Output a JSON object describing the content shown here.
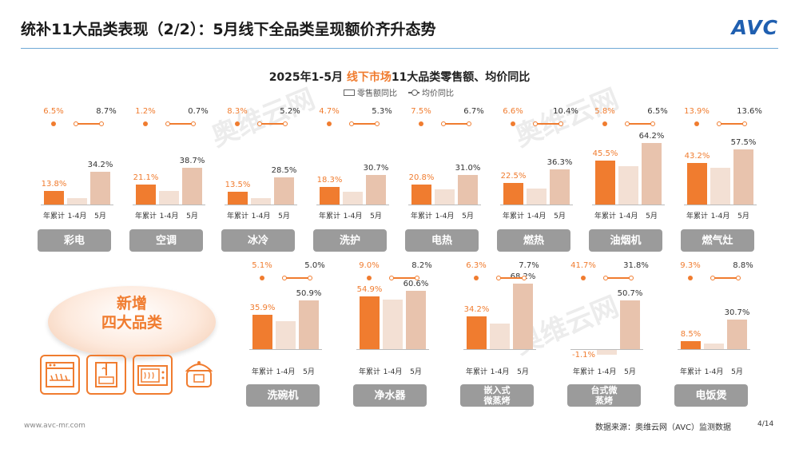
{
  "header": {
    "title": "统补11大品类表现（2/2）：5月线下全品类呈现额价齐升态势",
    "logo": "AVC"
  },
  "chart_header": {
    "subtitle_prefix": "2025年1-5月",
    "subtitle_highlight": "线下市场",
    "subtitle_suffix": "11大品类零售额、均价同比",
    "legend_bar": "零售额同比",
    "legend_line": "均价同比"
  },
  "colors": {
    "accent": "#f07c2f",
    "bar_light": "#e8c3ad",
    "bar_lighter": "#f3e0d4",
    "button": "#9b9b9b"
  },
  "new_badge": {
    "line1": "新增",
    "line2": "四大品类"
  },
  "icons": [
    "dishwasher-icon",
    "water-purifier-icon",
    "steam-oven-icon",
    "rice-cooker-icon"
  ],
  "watermark": {
    "text": "奥维云网",
    "sub": "ALL VIEW CLOUD"
  },
  "chart_data": {
    "type": "bar",
    "categories": [
      "年累计",
      "1-4月",
      "5月"
    ],
    "title": "2025年1-5月 线下市场11大品类零售额、均价同比",
    "series_names": [
      "零售额同比",
      "均价同比"
    ],
    "panels": [
      {
        "name": "彩电",
        "retail": [
          13.8,
          7.0,
          34.2
        ],
        "price": [
          6.5,
          8.7
        ]
      },
      {
        "name": "空调",
        "retail": [
          21.1,
          14.0,
          38.7
        ],
        "price": [
          1.2,
          0.7
        ]
      },
      {
        "name": "冰冷",
        "retail": [
          13.5,
          7.0,
          28.5
        ],
        "price": [
          8.3,
          5.2
        ]
      },
      {
        "name": "洗护",
        "retail": [
          18.3,
          13.0,
          30.7
        ],
        "price": [
          4.7,
          5.3
        ]
      },
      {
        "name": "电热",
        "retail": [
          20.8,
          16.0,
          31.0
        ],
        "price": [
          7.5,
          6.7
        ]
      },
      {
        "name": "燃热",
        "retail": [
          22.5,
          17.0,
          36.3
        ],
        "price": [
          6.6,
          10.4
        ]
      },
      {
        "name": "油烟机",
        "retail": [
          45.5,
          40.0,
          64.2
        ],
        "price": [
          5.8,
          6.5
        ]
      },
      {
        "name": "燃气灶",
        "retail": [
          43.2,
          38.0,
          57.5
        ],
        "price": [
          13.9,
          13.6
        ]
      },
      {
        "name": "洗碗机",
        "retail": [
          35.9,
          29.0,
          50.9
        ],
        "price": [
          5.1,
          5.0
        ]
      },
      {
        "name": "净水器",
        "retail": [
          54.9,
          52.0,
          60.6
        ],
        "price": [
          9.0,
          8.2
        ]
      },
      {
        "name": "嵌入式微蒸烤",
        "retail": [
          34.2,
          27.0,
          68.2
        ],
        "price": [
          6.3,
          7.7
        ]
      },
      {
        "name": "台式微蒸烤",
        "retail": [
          -1.1,
          -6.0,
          50.7
        ],
        "price": [
          41.7,
          31.8
        ]
      },
      {
        "name": "电饭煲",
        "retail": [
          8.5,
          6.0,
          30.7
        ],
        "price": [
          9.3,
          8.8
        ]
      }
    ],
    "labels": {
      "retail": [
        [
          "13.8%",
          "",
          "34.2%"
        ],
        [
          "21.1%",
          "",
          "38.7%"
        ],
        [
          "13.5%",
          "",
          "28.5%"
        ],
        [
          "18.3%",
          "",
          "30.7%"
        ],
        [
          "20.8%",
          "",
          "31.0%"
        ],
        [
          "22.5%",
          "",
          "36.3%"
        ],
        [
          "45.5%",
          "",
          "64.2%"
        ],
        [
          "43.2%",
          "",
          "57.5%"
        ],
        [
          "35.9%",
          "",
          "50.9%"
        ],
        [
          "54.9%",
          "",
          "60.6%"
        ],
        [
          "34.2%",
          "",
          "68.2%"
        ],
        [
          "-1.1%",
          "",
          "50.7%"
        ],
        [
          "8.5%",
          "",
          "30.7%"
        ]
      ],
      "price": [
        [
          "6.5%",
          "8.7%"
        ],
        [
          "1.2%",
          "0.7%"
        ],
        [
          "8.3%",
          "5.2%"
        ],
        [
          "4.7%",
          "5.3%"
        ],
        [
          "7.5%",
          "6.7%"
        ],
        [
          "6.6%",
          "10.4%"
        ],
        [
          "5.8%",
          "6.5%"
        ],
        [
          "13.9%",
          "13.6%"
        ],
        [
          "5.1%",
          "5.0%"
        ],
        [
          "9.0%",
          "8.2%"
        ],
        [
          "6.3%",
          "7.7%"
        ],
        [
          "41.7%",
          "31.8%"
        ],
        [
          "9.3%",
          "8.8%"
        ]
      ]
    }
  },
  "footer": {
    "url": "www.avc-mr.com",
    "source": "数据来源：奥维云网（AVC）监测数据",
    "page": "4/14"
  }
}
